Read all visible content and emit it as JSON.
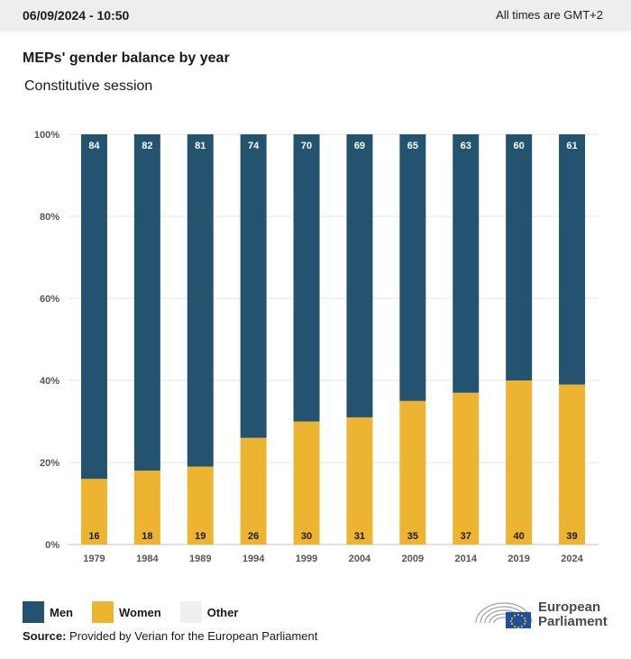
{
  "header": {
    "datetime": "06/09/2024 - 10:50",
    "timezone_note": "All times are GMT+2"
  },
  "title": "MEPs' gender balance by year",
  "subtitle": "Constitutive session",
  "chart_data": {
    "type": "bar",
    "stacked": true,
    "percent": true,
    "categories": [
      "1979",
      "1984",
      "1989",
      "1994",
      "1999",
      "2004",
      "2009",
      "2014",
      "2019",
      "2024"
    ],
    "series": [
      {
        "name": "Women",
        "color": "#edb431",
        "values": [
          16,
          18,
          19,
          26,
          30,
          31,
          35,
          37,
          40,
          39
        ]
      },
      {
        "name": "Men",
        "color": "#23536f",
        "values": [
          84,
          82,
          81,
          74,
          70,
          69,
          65,
          63,
          60,
          61
        ]
      }
    ],
    "y_ticks": [
      "0%",
      "20%",
      "40%",
      "60%",
      "80%",
      "100%"
    ],
    "ylim": [
      0,
      100
    ],
    "grid": true,
    "legend_position": "bottom-left"
  },
  "legend": [
    {
      "label": "Men",
      "color": "#23536f"
    },
    {
      "label": "Women",
      "color": "#edb431"
    },
    {
      "label": "Other",
      "color": "#eeeff0"
    }
  ],
  "source": {
    "label": "Source:",
    "text": "Provided by Verian for the European Parliament"
  },
  "logo": {
    "line1": "European",
    "line2": "Parliament"
  }
}
